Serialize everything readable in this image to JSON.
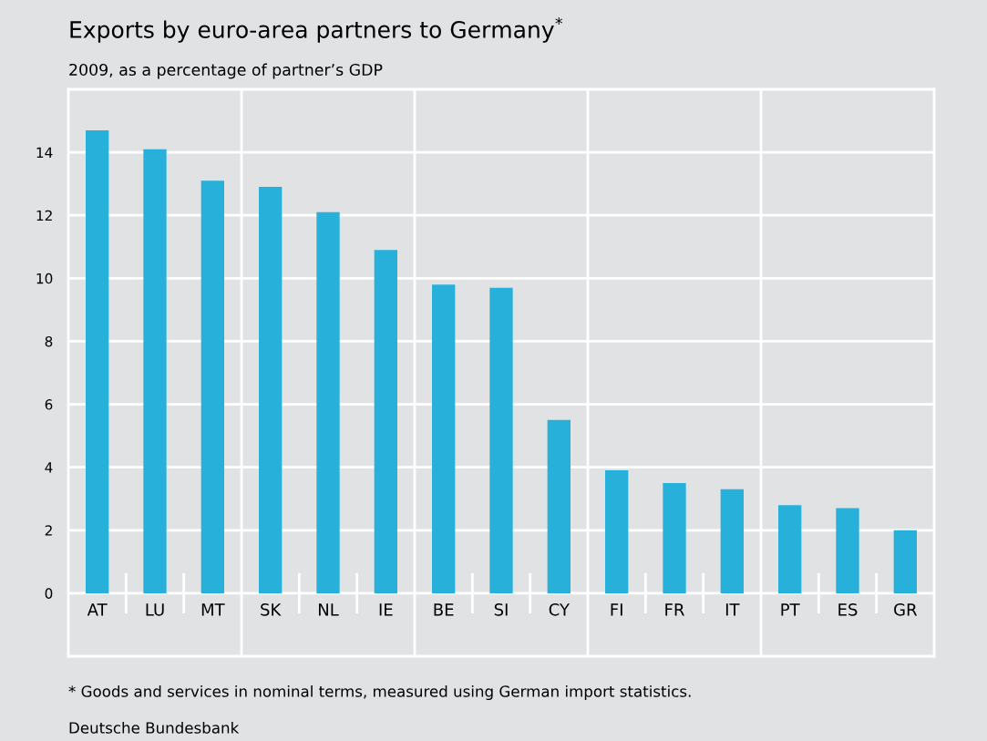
{
  "chart_data": {
    "type": "bar",
    "title": "Exports by euro-area partners to Germany$^{*}$",
    "subtitle": "2009, as a percentage of partner’s GDP",
    "categories": [
      "AT",
      "LU",
      "MT",
      "SK",
      "NL",
      "IE",
      "BE",
      "SI",
      "CY",
      "FI",
      "FR",
      "IT",
      "PT",
      "ES",
      "GR"
    ],
    "values": [
      14.7,
      14.1,
      13.1,
      12.9,
      12.1,
      10.9,
      9.8,
      9.7,
      5.5,
      3.9,
      3.5,
      3.3,
      2.8,
      2.7,
      2.0
    ],
    "color": "#27b1da",
    "ylim": [
      -2,
      16
    ],
    "yticks": [
      0,
      2,
      4,
      6,
      8,
      10,
      12,
      14
    ],
    "grid": "y",
    "annotations": [
      "* Goods and services in nominal terms, measured using German import statistics.",
      "Deutsche Bundesbank"
    ]
  }
}
